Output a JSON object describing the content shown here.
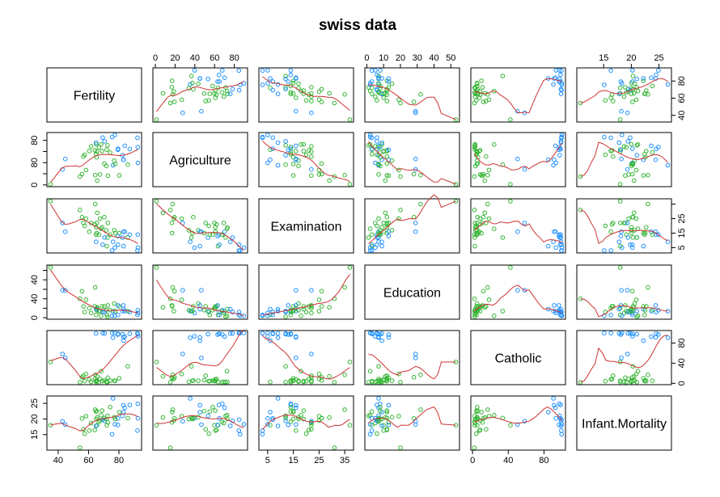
{
  "chart_data": {
    "type": "scatter-matrix",
    "title": "swiss data",
    "variables": [
      "Fertility",
      "Agriculture",
      "Examination",
      "Education",
      "Catholic",
      "Infant.Mortality"
    ],
    "axis_ranges": {
      "Fertility": [
        35,
        92.5
      ],
      "Agriculture": [
        1.2,
        89.7
      ],
      "Examination": [
        3,
        37
      ],
      "Education": [
        1,
        53
      ],
      "Catholic": [
        2.15,
        100
      ],
      "Infant.Mortality": [
        10.8,
        26.6
      ]
    },
    "axis_ticks": {
      "Fertility": [
        40,
        60,
        80
      ],
      "Agriculture": [
        0,
        20,
        40,
        60,
        80
      ],
      "Examination": [
        5,
        15,
        25,
        35
      ],
      "Education": [
        0,
        10,
        20,
        30,
        40,
        50
      ],
      "Catholic": [
        0,
        40,
        80
      ],
      "Infant.Mortality": [
        15,
        20,
        25
      ]
    },
    "axis_tick_labels": {
      "Fertility": [
        "40",
        "60",
        "80"
      ],
      "Agriculture": [
        "0",
        "20",
        "40",
        "60",
        "80"
      ],
      "Examination": [
        "5",
        "15",
        "25",
        "35"
      ],
      "Education": [
        "0",
        "10",
        "20",
        "30",
        "40",
        "50"
      ],
      "Catholic": [
        "0",
        "40",
        "80"
      ],
      "Infant.Mortality": [
        "15",
        "20",
        "25"
      ]
    },
    "axis_tick_labels_y": {
      "Fertility": [
        "40",
        "60",
        "80"
      ],
      "Agriculture": [
        "0",
        "40",
        "80"
      ],
      "Examination": [
        "5",
        "15",
        "25"
      ],
      "Education": [
        "0",
        "20",
        "40"
      ],
      "Catholic": [
        "0",
        "40",
        "80"
      ],
      "Infant.Mortality": [
        "15",
        "20",
        "25"
      ]
    },
    "group_colors": {
      "low_catholic": "#33b533",
      "high_catholic": "#1e90ff"
    },
    "smooth_color": "#cd3333",
    "frame_color": "#000000",
    "rows": [
      [
        80.2,
        17,
        15,
        12,
        9.96,
        22.2
      ],
      [
        83.1,
        45.1,
        6,
        9,
        84.84,
        22.2
      ],
      [
        92.5,
        39.7,
        5,
        5,
        93.4,
        20.2
      ],
      [
        85.8,
        36.5,
        12,
        7,
        33.77,
        20.3
      ],
      [
        76.9,
        43.5,
        17,
        15,
        5.16,
        20.6
      ],
      [
        76.1,
        35.3,
        9,
        7,
        90.57,
        26.6
      ],
      [
        83.8,
        70.2,
        16,
        7,
        92.85,
        23.6
      ],
      [
        92.4,
        67.8,
        14,
        8,
        97.16,
        24.9
      ],
      [
        82.4,
        53.3,
        12,
        7,
        97.67,
        21
      ],
      [
        82.9,
        45.2,
        16,
        13,
        91.38,
        24.4
      ],
      [
        87.1,
        64.5,
        14,
        6,
        98.61,
        24.5
      ],
      [
        64.1,
        62,
        21,
        12,
        8.52,
        16.5
      ],
      [
        66.9,
        67.5,
        14,
        7,
        2.27,
        19.1
      ],
      [
        68.9,
        60.7,
        19,
        12,
        4.43,
        22.7
      ],
      [
        61.7,
        69.3,
        22,
        5,
        2.82,
        18.7
      ],
      [
        68.3,
        72.6,
        18,
        2,
        24.2,
        21.2
      ],
      [
        71.7,
        34,
        17,
        8,
        3.3,
        20
      ],
      [
        55.7,
        19.4,
        26,
        28,
        12.11,
        20.2
      ],
      [
        54.3,
        15.2,
        31,
        20,
        2.15,
        10.8
      ],
      [
        65.1,
        73,
        19,
        9,
        2.84,
        20
      ],
      [
        65.5,
        59.8,
        22,
        10,
        5.23,
        18
      ],
      [
        65,
        55.1,
        14,
        3,
        4.52,
        22.4
      ],
      [
        56.6,
        50.9,
        22,
        12,
        15.14,
        16.7
      ],
      [
        57.4,
        54.1,
        20,
        6,
        4.2,
        15.3
      ],
      [
        72.5,
        71.2,
        12,
        1,
        2.4,
        21
      ],
      [
        74.2,
        58.1,
        14,
        8,
        5.23,
        23.8
      ],
      [
        72,
        63.5,
        6,
        3,
        2.56,
        18
      ],
      [
        60.5,
        60.8,
        16,
        10,
        7.72,
        16.3
      ],
      [
        58.3,
        26.8,
        25,
        19,
        18.46,
        20.9
      ],
      [
        65.4,
        49.5,
        15,
        8,
        6.1,
        22.5
      ],
      [
        75.5,
        85.9,
        3,
        2,
        99.71,
        15.1
      ],
      [
        69.3,
        84.9,
        7,
        6,
        99.68,
        19.8
      ],
      [
        77.3,
        89.7,
        5,
        2,
        100,
        18.3
      ],
      [
        70.5,
        78.2,
        12,
        6,
        98.96,
        19.4
      ],
      [
        79.4,
        64.9,
        7,
        3,
        98.22,
        20.2
      ],
      [
        65,
        75.9,
        9,
        9,
        99.06,
        17.8
      ],
      [
        92.2,
        84.6,
        3,
        3,
        99.46,
        16.3
      ],
      [
        79.3,
        63.1,
        13,
        13,
        96.83,
        18.1
      ],
      [
        70.4,
        38.4,
        26,
        12,
        5.62,
        20.3
      ],
      [
        65.7,
        7.7,
        29,
        11,
        13.79,
        20.5
      ],
      [
        72.7,
        16.7,
        22,
        13,
        11.22,
        18.9
      ],
      [
        64.4,
        17.6,
        35,
        32,
        16.92,
        23
      ],
      [
        77.6,
        37.6,
        15,
        7,
        4.97,
        20
      ],
      [
        67.6,
        18.7,
        25,
        7,
        8.65,
        19.5
      ],
      [
        35,
        1.2,
        37,
        53,
        42.34,
        18
      ],
      [
        44.7,
        46.6,
        16,
        29,
        50.43,
        18.2
      ],
      [
        42.8,
        27.7,
        22,
        29,
        58.33,
        19.3
      ]
    ]
  }
}
